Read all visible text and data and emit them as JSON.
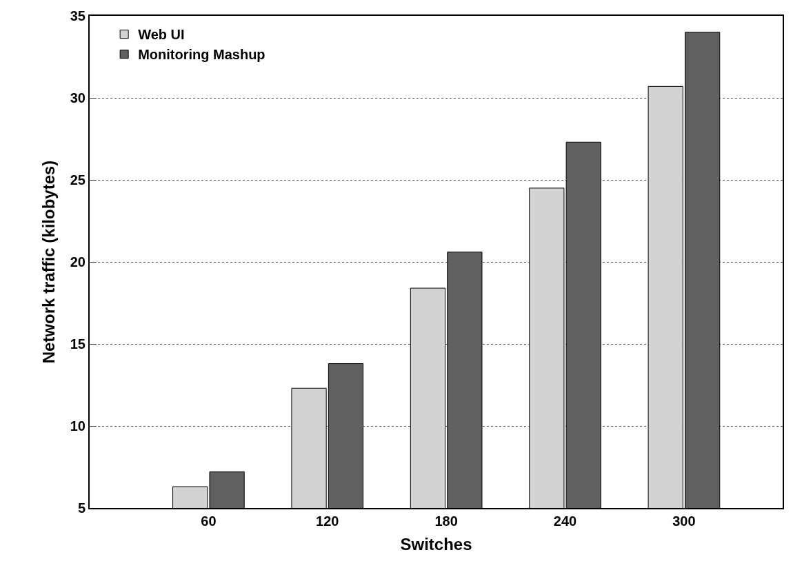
{
  "chart_data": {
    "type": "bar",
    "xlabel": "Switches",
    "ylabel": "Network traffic (kilobytes)",
    "categories": [
      "60",
      "120",
      "180",
      "240",
      "300"
    ],
    "series": [
      {
        "name": "Web UI",
        "color": "#d3d3d3",
        "values": [
          6.3,
          12.3,
          18.4,
          24.5,
          30.7
        ]
      },
      {
        "name": "Monitoring Mashup",
        "color": "#606060",
        "values": [
          7.2,
          13.8,
          20.6,
          27.3,
          34.0
        ]
      }
    ],
    "ylim": [
      5,
      35
    ],
    "yticks": [
      5,
      10,
      15,
      20,
      25,
      30,
      35
    ],
    "grid": "y",
    "legend": "top left"
  }
}
